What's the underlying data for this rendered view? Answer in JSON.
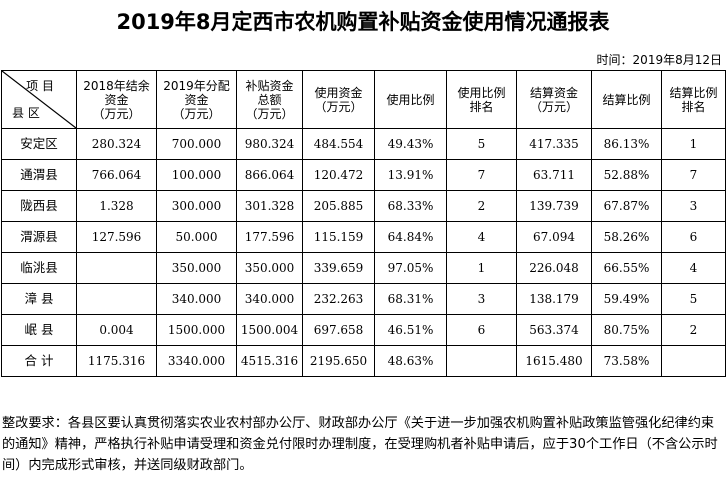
{
  "title": "2019年8月定西市农机购置补贴资金使用情况通报表",
  "date": "时间：2019年8月12日",
  "header": {
    "corner_top": "项 目",
    "corner_bottom": "县 区",
    "columns": [
      "2018年结余\n资金\n（万元）",
      "2019年分配\n资金\n（万元）",
      "补贴资金\n总额\n（万元）",
      "使用资金\n（万元）",
      "使用比例",
      "使用比例\n排名",
      "结算资金\n（万元）",
      "结算比例",
      "结算比例\n排名"
    ]
  },
  "rows": [
    {
      "county": "安定区",
      "c1": "280.324",
      "c2": "700.000",
      "c3": "980.324",
      "c4": "484.554",
      "c5": "49.43%",
      "c6": "5",
      "c7": "417.335",
      "c8": "86.13%",
      "c9": "1"
    },
    {
      "county": "通渭县",
      "c1": "766.064",
      "c2": "100.000",
      "c3": "866.064",
      "c4": "120.472",
      "c5": "13.91%",
      "c6": "7",
      "c7": "63.711",
      "c8": "52.88%",
      "c9": "7"
    },
    {
      "county": "陇西县",
      "c1": "1.328",
      "c2": "300.000",
      "c3": "301.328",
      "c4": "205.885",
      "c5": "68.33%",
      "c6": "2",
      "c7": "139.739",
      "c8": "67.87%",
      "c9": "3"
    },
    {
      "county": "渭源县",
      "c1": "127.596",
      "c2": "50.000",
      "c3": "177.596",
      "c4": "115.159",
      "c5": "64.84%",
      "c6": "4",
      "c7": "67.094",
      "c8": "58.26%",
      "c9": "6"
    },
    {
      "county": "临洮县",
      "c1": "",
      "c2": "350.000",
      "c3": "350.000",
      "c4": "339.659",
      "c5": "97.05%",
      "c6": "1",
      "c7": "226.048",
      "c8": "66.55%",
      "c9": "4"
    },
    {
      "county": "漳 县",
      "c1": "",
      "c2": "340.000",
      "c3": "340.000",
      "c4": "232.263",
      "c5": "68.31%",
      "c6": "3",
      "c7": "138.179",
      "c8": "59.49%",
      "c9": "5"
    },
    {
      "county": "岷 县",
      "c1": "0.004",
      "c2": "1500.000",
      "c3": "1500.004",
      "c4": "697.658",
      "c5": "46.51%",
      "c6": "6",
      "c7": "563.374",
      "c8": "80.75%",
      "c9": "2"
    },
    {
      "county": "合 计",
      "c1": "1175.316",
      "c2": "3340.000",
      "c3": "4515.316",
      "c4": "2195.650",
      "c5": "48.63%",
      "c6": "",
      "c7": "1615.480",
      "c8": "73.58%",
      "c9": ""
    }
  ],
  "notes": "整改要求：各县区要认真贯彻落实农业农村部办公厅、财政部办公厅《关于进一步加强农机购置补贴政策监管强化纪律约束的通知》精神，严格执行补贴申请受理和资金兑付限时办理制度，在受理购机者补贴申请后，应于30个工作日（不含公示时间）内完成形式审核，并送同级财政部门。"
}
